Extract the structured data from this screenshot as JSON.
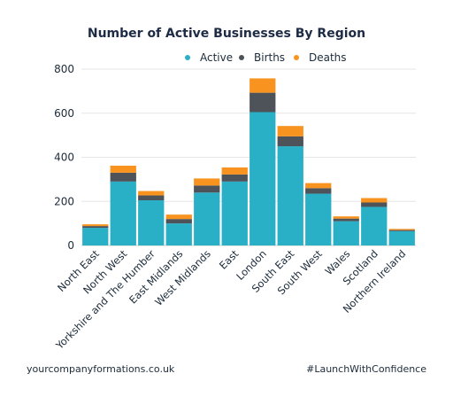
{
  "chart_data": {
    "type": "bar",
    "stacked": true,
    "title": "Number of Active Businesses By Region",
    "legend_position": "top",
    "grid": true,
    "ylim": [
      0,
      800
    ],
    "yticks": [
      0,
      200,
      400,
      600,
      800
    ],
    "categories": [
      "North East",
      "North West",
      "Yorkshire and The Humber",
      "East Midlands",
      "West Midlands",
      "East",
      "London",
      "South East",
      "South West",
      "Wales",
      "Scotland",
      "Northern Ireland"
    ],
    "series": [
      {
        "name": "Active",
        "color": "#2ab0c6",
        "values": [
          80,
          290,
          205,
          100,
          240,
          290,
          605,
          450,
          235,
          110,
          175,
          65
        ]
      },
      {
        "name": "Births",
        "color": "#4d5359",
        "values": [
          8,
          40,
          22,
          20,
          32,
          32,
          88,
          45,
          25,
          12,
          20,
          5
        ]
      },
      {
        "name": "Deaths",
        "color": "#f7931e",
        "values": [
          8,
          32,
          20,
          20,
          32,
          32,
          65,
          47,
          23,
          10,
          20,
          5
        ]
      }
    ]
  },
  "footer": {
    "left": "yourcompanyformations.co.uk",
    "right": "#LaunchWithConfidence"
  }
}
